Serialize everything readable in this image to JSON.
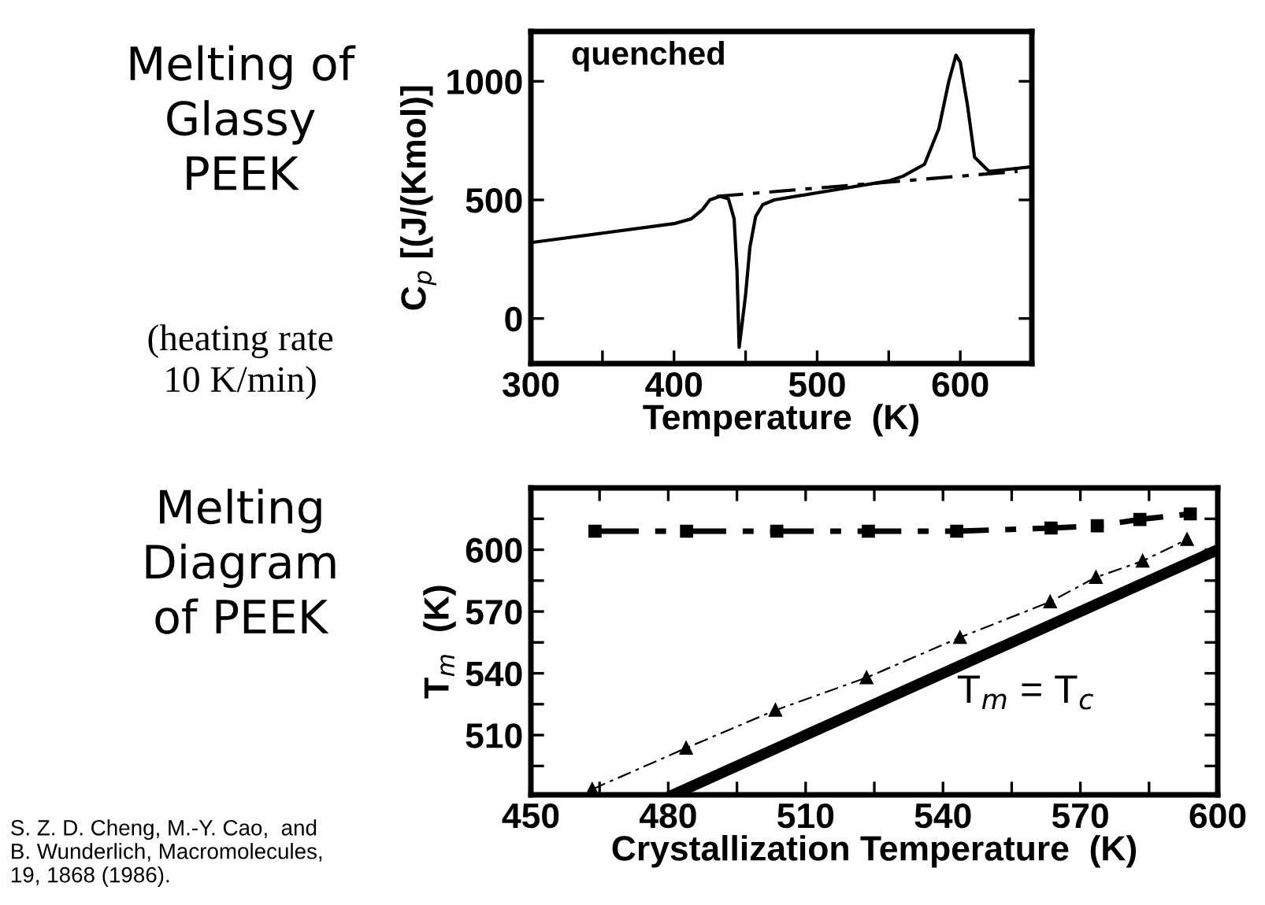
{
  "chart_data": [
    {
      "type": "line",
      "title": "Melting of\nGlassy\nPEEK",
      "subtitle": "(heating rate\n10 K/min)",
      "xlabel": "Temperature  (K)",
      "ylabel": "C$_{p}$ [(J/(Kmol)]",
      "annotations": [
        "quenched"
      ],
      "xlim": [
        300,
        650
      ],
      "xticks": [
        300,
        {
          "value": 350,
          "label": null
        },
        400,
        {
          "value": 450,
          "label": null
        },
        500,
        {
          "value": 550,
          "label": null
        },
        600,
        {
          "value": 650,
          "label": null
        }
      ],
      "ylim": [
        -190,
        1210
      ],
      "yticks": [
        0,
        500,
        1000
      ],
      "grid": false,
      "legend": false,
      "series": [
        {
          "color": "#000000",
          "line_style": "solid",
          "x": [
            300,
            350,
            400,
            412,
            420,
            425,
            432,
            438,
            442,
            444,
            445.5,
            447,
            450,
            453,
            457,
            462,
            470,
            500,
            550,
            560,
            575,
            585,
            592,
            597,
            600,
            605,
            610,
            620,
            650
          ],
          "values": [
            320,
            360,
            400,
            420,
            460,
            500,
            515,
            505,
            420,
            200,
            -122,
            -50,
            100,
            300,
            430,
            480,
            500,
            530,
            580,
            600,
            650,
            800,
            1000,
            1110,
            1080,
            900,
            680,
            620,
            640
          ]
        },
        {
          "color": "#000000",
          "line_style": "dashed",
          "x": [
            430,
            640
          ],
          "values": [
            515,
            620
          ]
        }
      ]
    },
    {
      "type": "line",
      "title": "Melting\nDiagram\nof PEEK",
      "xlabel": "Crystallization Temperature  (K)",
      "ylabel": "T$_{m}$  (K)",
      "annotations": [
        "S. Z. D. Cheng, M.-Y. Cao,  and\nB. Wunderlich, Macromolecules,\n19, 1868 (1986)."
      ],
      "xlim": [
        450,
        600
      ],
      "xticks": [
        450,
        {
          "value": 465,
          "label": null
        },
        480,
        {
          "value": 495,
          "label": null
        },
        510,
        {
          "value": 525,
          "label": null
        },
        540,
        {
          "value": 555,
          "label": null
        },
        570,
        {
          "value": 585,
          "label": null
        },
        600
      ],
      "ylim": [
        481,
        630
      ],
      "yticks": [
        {
          "value": 495,
          "label": null
        },
        510,
        {
          "value": 525,
          "label": null
        },
        540,
        {
          "value": 555,
          "label": null
        },
        570,
        {
          "value": 585,
          "label": null
        },
        600,
        {
          "value": 615,
          "label": null
        }
      ],
      "grid": false,
      "legend": false,
      "series": [
        {
          "color": "#000000",
          "line_style": "dashed",
          "marker": "square",
          "x": [
            464,
            484,
            503.7,
            523.7,
            543,
            563.6,
            573.7,
            583,
            594
          ],
          "values": [
            609,
            609,
            609,
            609,
            609,
            610.5,
            611.6,
            614.7,
            617.4
          ]
        },
        {
          "color": "#000000",
          "line_style": "dashed",
          "marker": "triangle",
          "x": [
            463.4,
            483.9,
            503.4,
            523.3,
            543.7,
            563.4,
            573.4,
            583.6,
            593.3
          ],
          "values": [
            483.7,
            503.7,
            522.1,
            537.9,
            557.4,
            574.7,
            586.6,
            594.5,
            605
          ]
        },
        {
          "name": "T$_{m}$ = T$_{c}$",
          "color": "#000000",
          "line_style": "solid",
          "x": [
            481,
            600
          ],
          "values": [
            481,
            600
          ]
        }
      ]
    }
  ]
}
